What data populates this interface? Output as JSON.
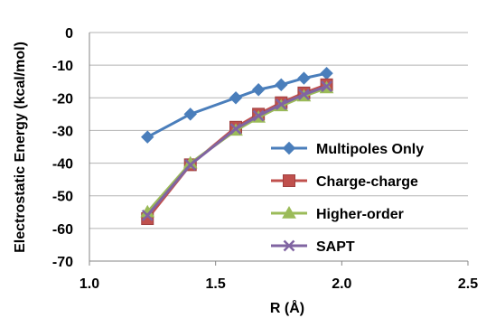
{
  "chart_data": {
    "type": "line",
    "title": "",
    "xlabel": "R (Å)",
    "ylabel": "Electrostatic Energy (kcal/mol)",
    "xlim": [
      1.0,
      2.5
    ],
    "ylim": [
      -70,
      0
    ],
    "xticks": [
      "1.0",
      "1.5",
      "2.0",
      "2.5"
    ],
    "yticks": [
      "0",
      "-10",
      "-20",
      "-30",
      "-40",
      "-50",
      "-60",
      "-70"
    ],
    "grid": "horizontal",
    "legend_position": "right-inside",
    "series": [
      {
        "name": "Multipoles Only",
        "color": "#4a7ebb",
        "marker": "diamond",
        "x": [
          1.23,
          1.4,
          1.58,
          1.67,
          1.76,
          1.85,
          1.94
        ],
        "y": [
          -32,
          -25,
          -20,
          -17.5,
          -16,
          -14,
          -12.5
        ]
      },
      {
        "name": "Charge-charge",
        "color": "#c0504d",
        "marker": "square",
        "x": [
          1.23,
          1.4,
          1.58,
          1.67,
          1.76,
          1.85,
          1.94
        ],
        "y": [
          -57,
          -40.5,
          -29,
          -25,
          -21.5,
          -18.5,
          -16
        ]
      },
      {
        "name": "Higher-order",
        "color": "#9bbb59",
        "marker": "triangle",
        "x": [
          1.23,
          1.4,
          1.58,
          1.67,
          1.76,
          1.85,
          1.94
        ],
        "y": [
          -55,
          -40,
          -30,
          -26,
          -22.5,
          -19.5,
          -17
        ]
      },
      {
        "name": "SAPT",
        "color": "#8064a2",
        "marker": "x",
        "x": [
          1.23,
          1.4,
          1.58,
          1.67,
          1.76,
          1.85,
          1.94
        ],
        "y": [
          -56,
          -40.5,
          -29.5,
          -25.5,
          -22,
          -19,
          -16.5
        ]
      }
    ]
  }
}
